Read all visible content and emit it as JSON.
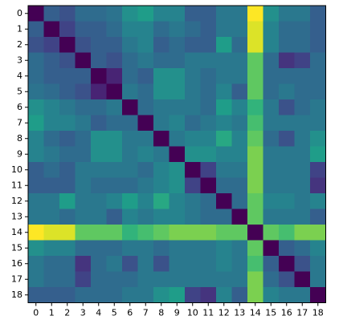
{
  "chart_data": {
    "type": "heatmap",
    "colormap": "viridis",
    "x": [
      0,
      1,
      2,
      3,
      4,
      5,
      6,
      7,
      8,
      9,
      10,
      11,
      12,
      13,
      14,
      15,
      16,
      17,
      18
    ],
    "y": [
      0,
      1,
      2,
      3,
      4,
      5,
      6,
      7,
      8,
      9,
      10,
      11,
      12,
      13,
      14,
      15,
      16,
      17,
      18
    ],
    "values": [
      [
        0,
        0.3,
        0.25,
        0.35,
        0.35,
        0.38,
        0.5,
        0.55,
        0.45,
        0.45,
        0.3,
        0.3,
        0.4,
        0.4,
        1,
        0.5,
        0.4,
        0.4,
        0.3
      ],
      [
        0.3,
        0,
        0.2,
        0.3,
        0.3,
        0.35,
        0.45,
        0.45,
        0.35,
        0.4,
        0.35,
        0.3,
        0.4,
        0.4,
        0.95,
        0.45,
        0.35,
        0.35,
        0.3
      ],
      [
        0.25,
        0.2,
        0,
        0.25,
        0.3,
        0.3,
        0.4,
        0.45,
        0.3,
        0.35,
        0.3,
        0.3,
        0.55,
        0.35,
        0.95,
        0.45,
        0.35,
        0.35,
        0.3
      ],
      [
        0.35,
        0.3,
        0.25,
        0,
        0.3,
        0.25,
        0.35,
        0.4,
        0.35,
        0.35,
        0.4,
        0.4,
        0.4,
        0.4,
        0.75,
        0.35,
        0.15,
        0.2,
        0.35
      ],
      [
        0.35,
        0.3,
        0.3,
        0.3,
        0,
        0.1,
        0.35,
        0.3,
        0.5,
        0.5,
        0.4,
        0.35,
        0.4,
        0.4,
        0.75,
        0.35,
        0.35,
        0.35,
        0.35
      ],
      [
        0.38,
        0.35,
        0.3,
        0.25,
        0.1,
        0,
        0.4,
        0.35,
        0.5,
        0.5,
        0.4,
        0.35,
        0.45,
        0.3,
        0.75,
        0.35,
        0.4,
        0.35,
        0.35
      ],
      [
        0.5,
        0.45,
        0.4,
        0.35,
        0.35,
        0.4,
        0,
        0.35,
        0.4,
        0.4,
        0.4,
        0.35,
        0.55,
        0.45,
        0.65,
        0.4,
        0.25,
        0.35,
        0.4
      ],
      [
        0.55,
        0.45,
        0.45,
        0.4,
        0.3,
        0.35,
        0.35,
        0,
        0.4,
        0.45,
        0.35,
        0.4,
        0.45,
        0.4,
        0.7,
        0.4,
        0.4,
        0.4,
        0.4
      ],
      [
        0.45,
        0.35,
        0.3,
        0.35,
        0.5,
        0.5,
        0.4,
        0.4,
        0,
        0.4,
        0.45,
        0.45,
        0.6,
        0.45,
        0.75,
        0.35,
        0.25,
        0.4,
        0.5
      ],
      [
        0.45,
        0.4,
        0.35,
        0.35,
        0.5,
        0.5,
        0.4,
        0.45,
        0.4,
        0,
        0.5,
        0.5,
        0.45,
        0.45,
        0.8,
        0.4,
        0.4,
        0.4,
        0.55
      ],
      [
        0.3,
        0.35,
        0.3,
        0.4,
        0.4,
        0.4,
        0.4,
        0.35,
        0.45,
        0.5,
        0,
        0.2,
        0.4,
        0.4,
        0.8,
        0.4,
        0.4,
        0.4,
        0.2
      ],
      [
        0.3,
        0.3,
        0.3,
        0.4,
        0.35,
        0.35,
        0.35,
        0.4,
        0.45,
        0.5,
        0.2,
        0,
        0.35,
        0.35,
        0.8,
        0.4,
        0.4,
        0.4,
        0.15
      ],
      [
        0.4,
        0.4,
        0.55,
        0.4,
        0.4,
        0.45,
        0.55,
        0.45,
        0.6,
        0.45,
        0.4,
        0.35,
        0,
        0.35,
        0.75,
        0.45,
        0.45,
        0.4,
        0.45
      ],
      [
        0.4,
        0.4,
        0.35,
        0.4,
        0.4,
        0.3,
        0.45,
        0.4,
        0.45,
        0.45,
        0.4,
        0.35,
        0.35,
        0,
        0.75,
        0.4,
        0.4,
        0.4,
        0.3
      ],
      [
        1,
        0.95,
        0.95,
        0.75,
        0.75,
        0.75,
        0.65,
        0.7,
        0.75,
        0.8,
        0.8,
        0.8,
        0.75,
        0.75,
        0,
        0.75,
        0.7,
        0.8,
        0.8
      ],
      [
        0.5,
        0.45,
        0.45,
        0.35,
        0.35,
        0.35,
        0.4,
        0.4,
        0.35,
        0.4,
        0.4,
        0.4,
        0.45,
        0.4,
        0.75,
        0,
        0.3,
        0.35,
        0.45
      ],
      [
        0.4,
        0.35,
        0.35,
        0.15,
        0.35,
        0.4,
        0.25,
        0.4,
        0.25,
        0.4,
        0.4,
        0.4,
        0.45,
        0.4,
        0.7,
        0.3,
        0,
        0.25,
        0.4
      ],
      [
        0.4,
        0.35,
        0.35,
        0.2,
        0.35,
        0.35,
        0.35,
        0.4,
        0.4,
        0.4,
        0.4,
        0.4,
        0.4,
        0.4,
        0.8,
        0.35,
        0.25,
        0,
        0.4
      ],
      [
        0.3,
        0.3,
        0.3,
        0.35,
        0.35,
        0.35,
        0.4,
        0.4,
        0.5,
        0.55,
        0.2,
        0.15,
        0.45,
        0.3,
        0.8,
        0.45,
        0.4,
        0.4,
        0
      ]
    ]
  }
}
